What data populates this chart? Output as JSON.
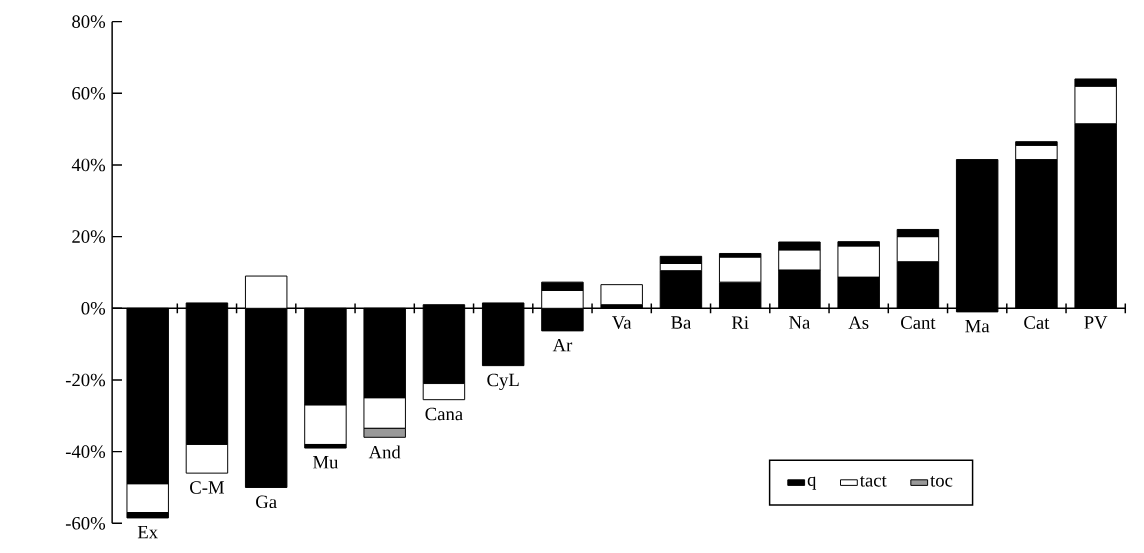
{
  "chart_data": {
    "type": "bar",
    "stacked": true,
    "legend": "bottom right",
    "categories": [
      "Ex",
      "C-M",
      "Ga",
      "Mu",
      "And",
      "Cana",
      "CyL",
      "Ar",
      "Va",
      "Ba",
      "Ri",
      "Na",
      "As",
      "Cant",
      "Ma",
      "Cat",
      "PV"
    ],
    "ylim": [
      -60,
      80
    ],
    "yticks": [
      {
        "value": -60,
        "label": "-60%"
      },
      {
        "value": -40,
        "label": "-40%"
      },
      {
        "value": -20,
        "label": "-20%"
      },
      {
        "value": 0,
        "label": "0%"
      },
      {
        "value": 20,
        "label": "20%"
      },
      {
        "value": 40,
        "label": "40%"
      },
      {
        "value": 60,
        "label": "60%"
      },
      {
        "value": 80,
        "label": "80%"
      }
    ],
    "series": [
      {
        "name": "q",
        "color": "#000000",
        "values": [
          -49,
          -38,
          -50,
          -27,
          -25,
          -21,
          -16,
          -6.3,
          1,
          10.5,
          7.3,
          10.7,
          8.7,
          13,
          41.5,
          41.5,
          51.5
        ]
      },
      {
        "name": "tact",
        "color": "#ffffff",
        "values": [
          -8,
          -8,
          9,
          -11,
          -8.5,
          -4.5,
          null,
          5,
          5.6,
          2,
          7,
          5.6,
          8.7,
          7,
          null,
          4,
          10.5
        ]
      },
      {
        "name": "toc",
        "color": "#999999",
        "values": [
          null,
          null,
          null,
          null,
          -2.5,
          null,
          null,
          null,
          null,
          null,
          null,
          null,
          null,
          null,
          null,
          null,
          null
        ]
      },
      {
        "color": "#000000",
        "values": [
          -1.5,
          1.5,
          null,
          -1,
          null,
          1,
          1.5,
          2.3,
          null,
          2,
          1,
          2.2,
          1.2,
          2,
          -1,
          1,
          2
        ]
      }
    ]
  }
}
